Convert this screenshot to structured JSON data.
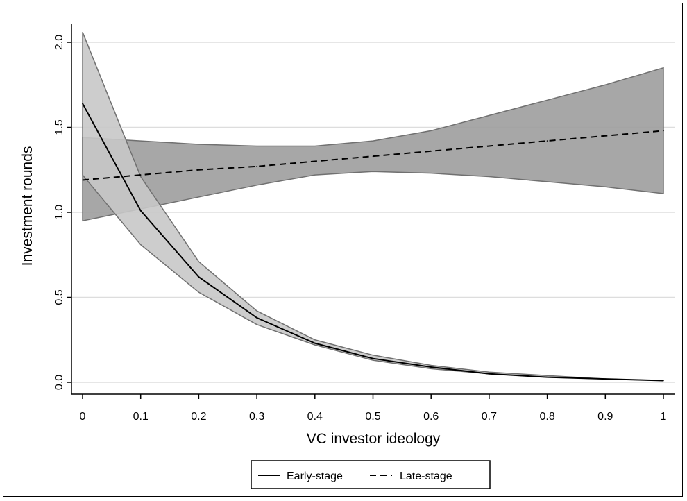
{
  "chart_data": {
    "type": "line",
    "xlabel": "VC investor ideology",
    "ylabel": "Investment rounds",
    "xlim": [
      0,
      1
    ],
    "ylim": [
      -0.1,
      2.12
    ],
    "x_ticks": [
      "0",
      "0.1",
      "0.2",
      "0.3",
      "0.4",
      "0.5",
      "0.6",
      "0.7",
      "0.8",
      "0.9",
      "1"
    ],
    "y_ticks": [
      "0.0",
      "0.5",
      "1.0",
      "1.5",
      "2.0"
    ],
    "grid": "horizontal",
    "legend_position": "bottom",
    "x": [
      0,
      0.1,
      0.2,
      0.3,
      0.4,
      0.5,
      0.6,
      0.7,
      0.8,
      0.9,
      1
    ],
    "series": [
      {
        "name": "Early-stage",
        "style": "solid",
        "values": [
          1.64,
          1.01,
          0.62,
          0.38,
          0.23,
          0.14,
          0.09,
          0.05,
          0.03,
          0.02,
          0.01
        ],
        "ci_lower": [
          1.22,
          0.81,
          0.53,
          0.34,
          0.22,
          0.13,
          0.08,
          0.05,
          0.03,
          0.02,
          0.01
        ],
        "ci_upper": [
          2.06,
          1.21,
          0.71,
          0.42,
          0.25,
          0.16,
          0.1,
          0.06,
          0.04,
          0.02,
          0.01
        ]
      },
      {
        "name": "Late-stage",
        "style": "dashed",
        "values": [
          1.19,
          1.22,
          1.25,
          1.27,
          1.3,
          1.33,
          1.36,
          1.39,
          1.42,
          1.45,
          1.48
        ],
        "ci_lower": [
          0.95,
          1.02,
          1.09,
          1.16,
          1.22,
          1.24,
          1.23,
          1.21,
          1.18,
          1.15,
          1.11
        ],
        "ci_upper": [
          1.44,
          1.42,
          1.4,
          1.39,
          1.39,
          1.42,
          1.48,
          1.57,
          1.66,
          1.75,
          1.85
        ]
      }
    ],
    "colors": {
      "line": "#000000",
      "early_band_fill": "#c8c8c8",
      "late_band_fill": "#9d9d9d",
      "band_edge": "#707070",
      "grid": "#dddddd"
    }
  }
}
